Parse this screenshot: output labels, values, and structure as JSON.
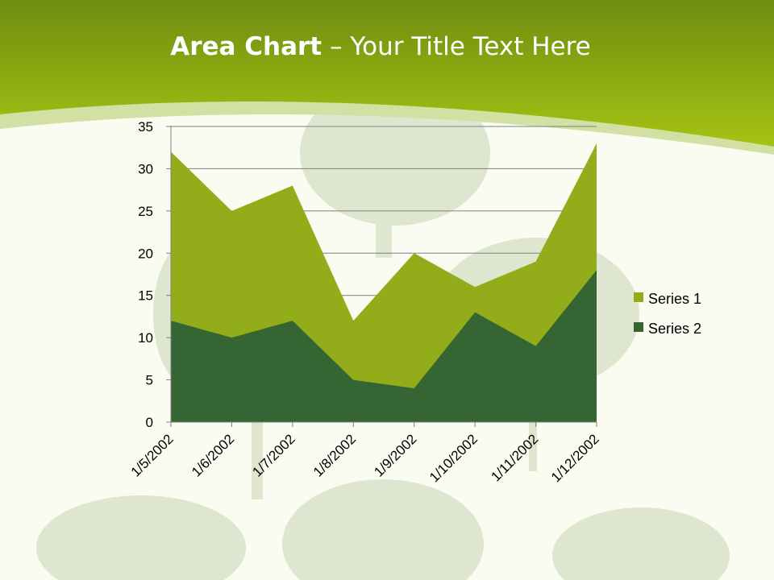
{
  "slide": {
    "title_bold": "Area Chart",
    "title_rest": " – Your Title Text Here"
  },
  "colors": {
    "header_dark": "#6f8d0f",
    "header_light": "#a6c313",
    "swoosh": "#d3e0a3",
    "background": "#fafcf1",
    "tree": "#dfe6cf",
    "series1": "#93ad1a",
    "series2": "#346533",
    "grid": "#7f7f7f"
  },
  "chart_data": {
    "type": "area",
    "stacked": false,
    "categories": [
      "1/5/2002",
      "1/6/2002",
      "1/7/2002",
      "1/8/2002",
      "1/9/2002",
      "1/10/2002",
      "1/11/2002",
      "1/12/2002"
    ],
    "series": [
      {
        "name": "Series 1",
        "values": [
          32,
          25,
          28,
          12,
          20,
          16,
          19,
          33
        ],
        "color": "#93ad1a"
      },
      {
        "name": "Series 2",
        "values": [
          12,
          10,
          12,
          5,
          4,
          13,
          9,
          18
        ],
        "color": "#346533"
      }
    ],
    "ylim": [
      0,
      35
    ],
    "yticks": [
      0,
      5,
      10,
      15,
      20,
      25,
      30,
      35
    ],
    "grid": true,
    "legend": "right"
  }
}
